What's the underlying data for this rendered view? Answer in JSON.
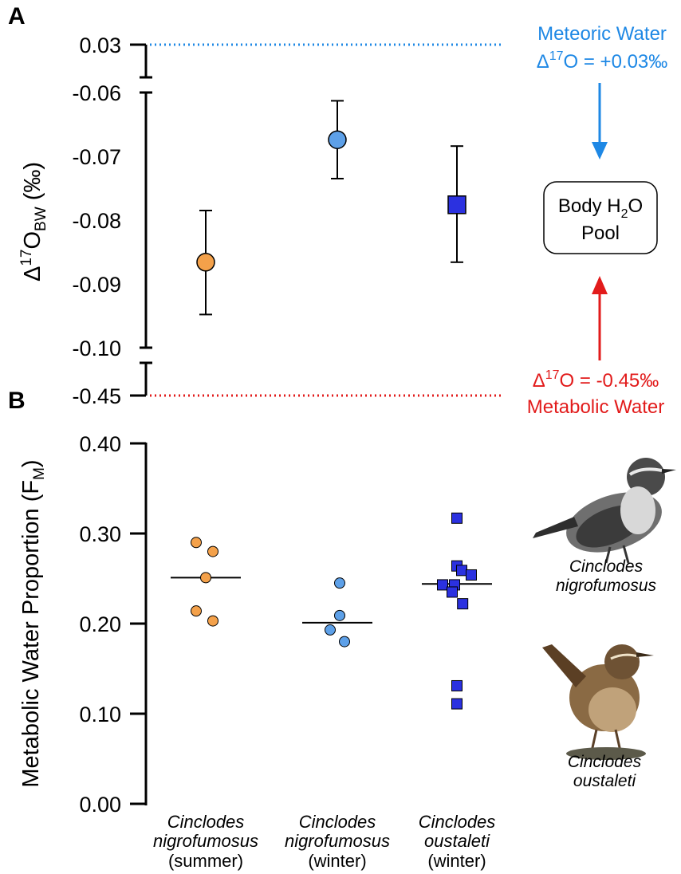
{
  "colors": {
    "summer": "#F4A14A",
    "winter": "#5DA0E8",
    "oustaleti": "#2B31E0",
    "meteoric": "#1E88E5",
    "metabolic": "#E21B1B"
  },
  "chart_data": [
    {
      "panel": "A",
      "type": "scatter",
      "ylabel_base": "Δ",
      "ylabel_sup": "17",
      "ylabel_main": "O",
      "ylabel_sub": "BW",
      "ylabel_unit": " (‰)",
      "y_ticks": [
        "0.03",
        "-0.06",
        "-0.07",
        "-0.08",
        "-0.09",
        "-0.10",
        "-0.45"
      ],
      "ylim_main": [
        -0.1,
        -0.06
      ],
      "axis_break": true,
      "series": [
        {
          "name": "Cinclodes nigrofumosus (summer)",
          "marker": "circle",
          "mean": -0.0866,
          "err_low": -0.0948,
          "err_high": -0.0785
        },
        {
          "name": "Cinclodes nigrofumosus (winter)",
          "marker": "circle",
          "mean": -0.0674,
          "err_low": -0.0735,
          "err_high": -0.0613
        },
        {
          "name": "Cinclodes oustaleti (winter)",
          "marker": "square",
          "mean": -0.0776,
          "err_low": -0.0866,
          "err_high": -0.0684
        }
      ],
      "reference_lines": [
        {
          "name": "Meteoric Water",
          "value": 0.03
        },
        {
          "name": "Metabolic Water",
          "value": -0.45
        }
      ],
      "annotations": {
        "meteoric_label": "Meteoric Water",
        "meteoric_prefix": "Δ",
        "meteoric_sup": "17",
        "meteoric_value": "O = +0.03‰",
        "metabolic_prefix": "Δ",
        "metabolic_sup": "17",
        "metabolic_value": "O = -0.45‰",
        "metabolic_label": "Metabolic Water",
        "pool_line1_pre": "Body H",
        "pool_line1_sub": "2",
        "pool_line1_post": "O",
        "pool_line2": "Pool"
      }
    },
    {
      "panel": "B",
      "type": "scatter",
      "ylabel_main": "Metabolic Water Proportion (F",
      "ylabel_sub": "M",
      "ylabel_end": ")",
      "ylim": [
        0,
        0.4
      ],
      "y_ticks": [
        "0.00",
        "0.10",
        "0.20",
        "0.30",
        "0.40"
      ],
      "categories": [
        {
          "line1": "Cinclodes",
          "line2": "nigrofumosus",
          "line3": "(summer)"
        },
        {
          "line1": "Cinclodes",
          "line2": "nigrofumosus",
          "line3": "(winter)"
        },
        {
          "line1": "Cinclodes",
          "line2": "oustaleti",
          "line3": "(winter)"
        }
      ],
      "series": [
        {
          "name": "Cinclodes nigrofumosus (summer)",
          "marker": "circle",
          "points": [
            {
              "x": -0.2,
              "y": 0.29
            },
            {
              "x": 0.15,
              "y": 0.28
            },
            {
              "x": 0.0,
              "y": 0.251
            },
            {
              "x": -0.2,
              "y": 0.214
            },
            {
              "x": 0.15,
              "y": 0.203
            }
          ],
          "median": 0.251
        },
        {
          "name": "Cinclodes nigrofumosus (winter)",
          "marker": "circle",
          "points": [
            {
              "x": 0.05,
              "y": 0.245
            },
            {
              "x": 0.05,
              "y": 0.209
            },
            {
              "x": -0.15,
              "y": 0.193
            },
            {
              "x": 0.15,
              "y": 0.18
            }
          ],
          "median": 0.201
        },
        {
          "name": "Cinclodes oustaleti (winter)",
          "marker": "square",
          "points": [
            {
              "x": 0.0,
              "y": 0.317
            },
            {
              "x": 0.0,
              "y": 0.264
            },
            {
              "x": 0.1,
              "y": 0.259
            },
            {
              "x": 0.3,
              "y": 0.254
            },
            {
              "x": -0.3,
              "y": 0.243
            },
            {
              "x": -0.05,
              "y": 0.243
            },
            {
              "x": -0.1,
              "y": 0.235
            },
            {
              "x": 0.12,
              "y": 0.222
            },
            {
              "x": 0.0,
              "y": 0.131
            },
            {
              "x": 0.0,
              "y": 0.111
            }
          ],
          "median": 0.244
        }
      ]
    }
  ],
  "bird_labels": {
    "bird1_line1": "Cinclodes",
    "bird1_line2": "nigrofumosus",
    "bird2_line1": "Cinclodes",
    "bird2_line2": "oustaleti"
  }
}
